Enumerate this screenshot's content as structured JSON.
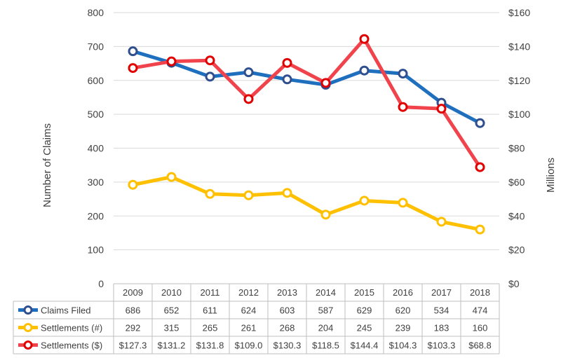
{
  "chart_data": {
    "type": "line",
    "categories": [
      "2009",
      "2010",
      "2011",
      "2012",
      "2013",
      "2014",
      "2015",
      "2016",
      "2017",
      "2018"
    ],
    "series": [
      {
        "name": "Claims Filed",
        "axis": "left",
        "color": "#1f6fbf",
        "marker_edge": "#2f4f8f",
        "values": [
          686,
          652,
          611,
          624,
          603,
          587,
          629,
          620,
          534,
          474
        ],
        "labels": [
          "686",
          "652",
          "611",
          "624",
          "603",
          "587",
          "629",
          "620",
          "534",
          "474"
        ]
      },
      {
        "name": "Settlements (#)",
        "axis": "left",
        "color": "#ffc000",
        "marker_edge": "#ffc000",
        "values": [
          292,
          315,
          265,
          261,
          268,
          204,
          245,
          239,
          183,
          160
        ],
        "labels": [
          "292",
          "315",
          "265",
          "261",
          "268",
          "204",
          "245",
          "239",
          "183",
          "160"
        ]
      },
      {
        "name": "Settlements ($)",
        "axis": "right",
        "color": "#f0434b",
        "marker_edge": "#e00000",
        "values": [
          127.3,
          131.2,
          131.8,
          109.0,
          130.3,
          118.5,
          144.4,
          104.3,
          103.3,
          68.8
        ],
        "labels": [
          "$127.3",
          "$131.2",
          "$131.8",
          "$109.0",
          "$130.3",
          "$118.5",
          "$144.4",
          "$104.3",
          "$103.3",
          "$68.8"
        ]
      }
    ],
    "ylabel": "Number of Claims",
    "ylabel_right": "Millions",
    "ylim": [
      0,
      800
    ],
    "ylim_right": [
      0,
      160
    ],
    "yticks": [
      "800",
      "700",
      "600",
      "500",
      "400",
      "300",
      "200",
      "100",
      "0"
    ],
    "yticks_right": [
      "$160",
      "$140",
      "$120",
      "$100",
      "$80",
      "$60",
      "$40",
      "$20",
      "$0"
    ],
    "grid": true,
    "legend": "data-table"
  }
}
